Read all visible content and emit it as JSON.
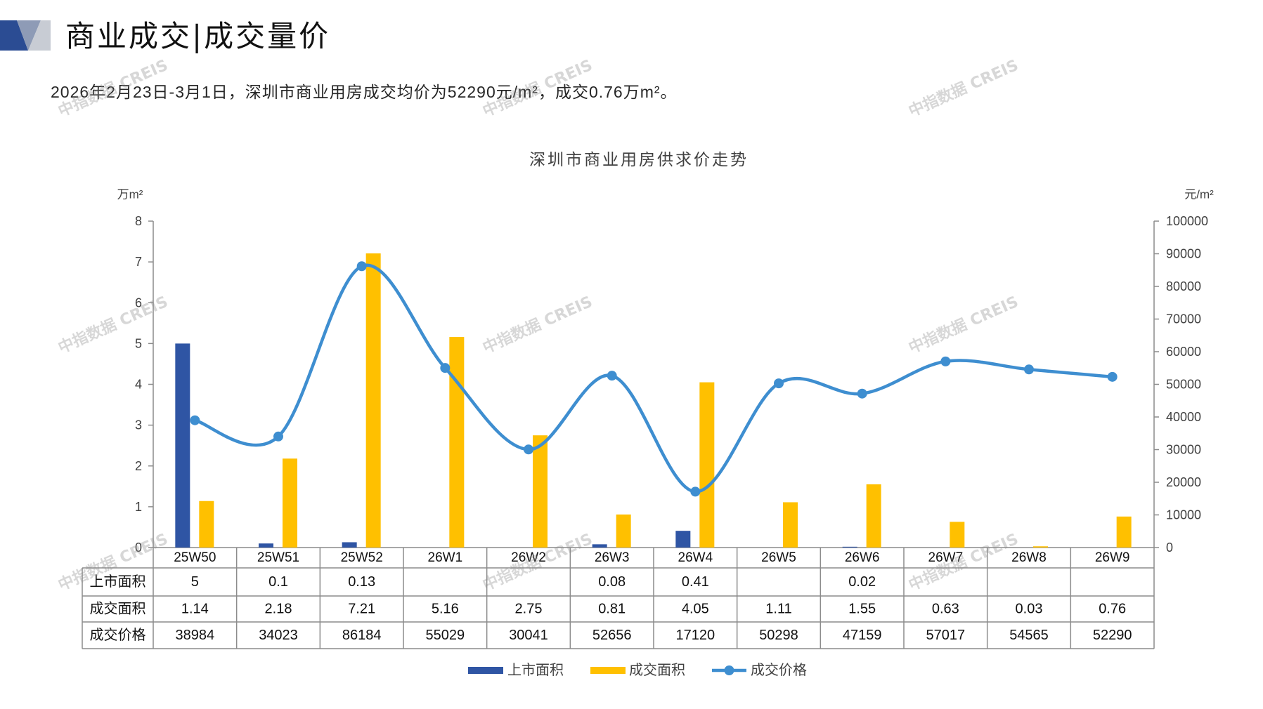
{
  "header": {
    "title": "商业成交|成交量价",
    "subtitle": "2026年2月23日-3月1日，深圳市商业用房成交均价为52290元/m²，成交0.76万m²。"
  },
  "watermark": "中指数据 CREIS",
  "colors": {
    "logo_dark": "#2B4C93",
    "logo_mid": "#8E9BB6",
    "logo_light": "#C8CCD4",
    "listed_area": "#2F55A4",
    "traded_area": "#FFC000",
    "traded_price": "#3E8ED0",
    "axis": "#8C8C8C",
    "table_border": "#8C8C8C"
  },
  "chart_data": {
    "type": "bar",
    "title": "深圳市商业用房供求价走势",
    "categories": [
      "25W50",
      "25W51",
      "25W52",
      "26W1",
      "26W2",
      "26W3",
      "26W4",
      "26W5",
      "26W6",
      "26W7",
      "26W8",
      "26W9"
    ],
    "y_left": {
      "label": "万m²",
      "range": [
        0,
        8
      ],
      "ticks": [
        0,
        1,
        2,
        3,
        4,
        5,
        6,
        7,
        8
      ]
    },
    "y_right": {
      "label": "元/m²",
      "range": [
        0,
        100000
      ],
      "ticks": [
        0,
        10000,
        20000,
        30000,
        40000,
        50000,
        60000,
        70000,
        80000,
        90000,
        100000
      ]
    },
    "series": [
      {
        "name": "上市面积",
        "type": "bar",
        "values": [
          5,
          0.1,
          0.13,
          null,
          null,
          0.08,
          0.41,
          null,
          0.02,
          null,
          null,
          null
        ]
      },
      {
        "name": "成交面积",
        "type": "bar",
        "values": [
          1.14,
          2.18,
          7.21,
          5.16,
          2.75,
          0.81,
          4.05,
          1.11,
          1.55,
          0.63,
          0.03,
          0.76
        ]
      },
      {
        "name": "成交价格",
        "type": "line",
        "secondary_axis": true,
        "smooth": true,
        "markers": true,
        "values": [
          38984,
          34023,
          86184,
          55029,
          30041,
          52656,
          17120,
          50298,
          47159,
          57017,
          54565,
          52290
        ]
      }
    ],
    "data_table": true,
    "legend": "bottom",
    "grid": false
  }
}
